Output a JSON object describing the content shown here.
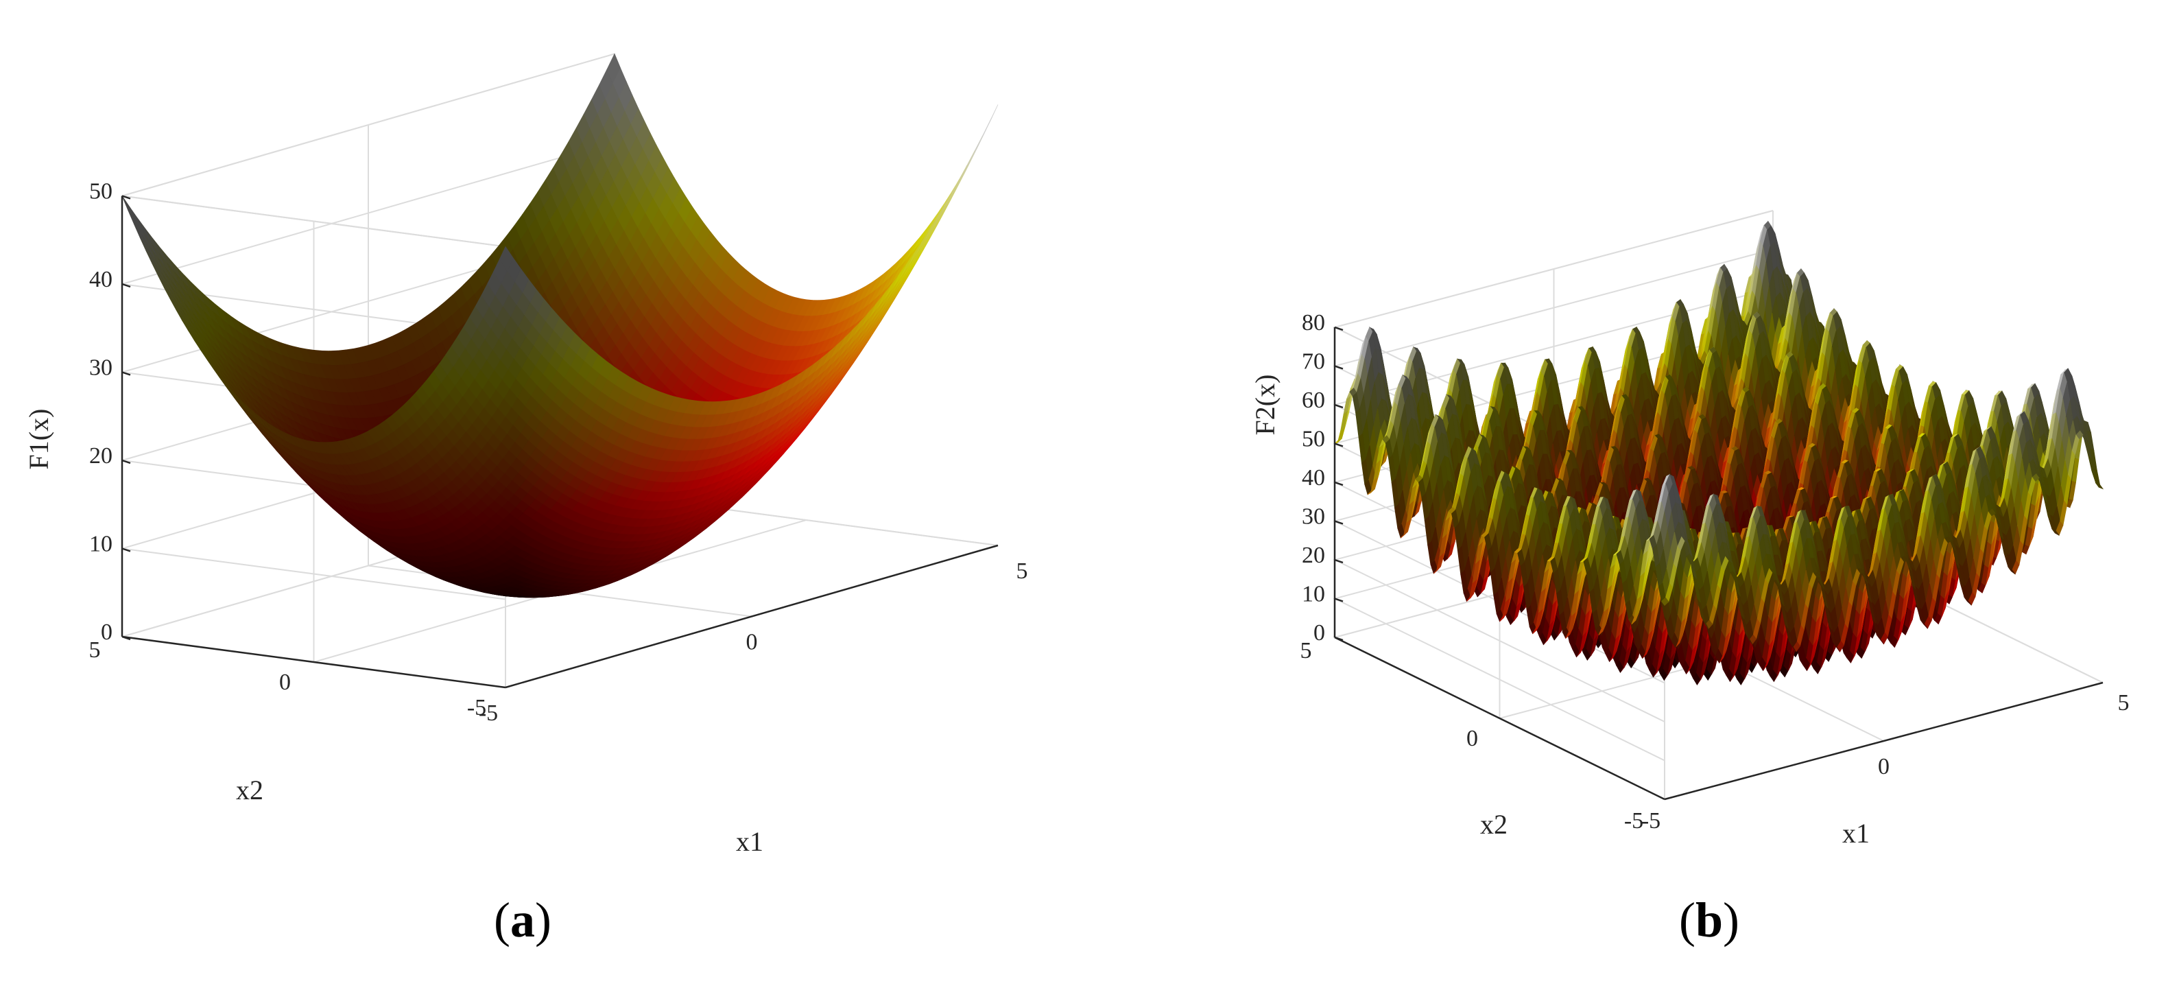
{
  "figure": {
    "captions": [
      {
        "open": "(",
        "letter": "a",
        "close": ")"
      },
      {
        "open": "(",
        "letter": "b",
        "close": ")"
      }
    ]
  },
  "chart_data": [
    {
      "type": "surface3d",
      "panel": "a",
      "function": "sphere",
      "zlabel": "F1(x)",
      "xlabel": "x1",
      "ylabel": "x2",
      "x_range": [
        -5,
        5
      ],
      "y_range": [
        -5,
        5
      ],
      "zlim": [
        0,
        50
      ],
      "x_ticks": [
        "-5",
        "0",
        "5"
      ],
      "y_ticks": [
        "-5",
        "0",
        "5"
      ],
      "z_ticks": [
        "0",
        "10",
        "20",
        "30",
        "40",
        "50"
      ],
      "x": [
        -5,
        -2.5,
        0,
        2.5,
        5
      ],
      "y": [
        -5,
        -2.5,
        0,
        2.5,
        5
      ],
      "z": [
        [
          50,
          31.25,
          25,
          31.25,
          50
        ],
        [
          31.25,
          12.5,
          6.25,
          12.5,
          31.25
        ],
        [
          25,
          6.25,
          0,
          6.25,
          25
        ],
        [
          31.25,
          12.5,
          6.25,
          12.5,
          31.25
        ],
        [
          50,
          31.25,
          25,
          31.25,
          50
        ]
      ],
      "colormap": "hot",
      "grid": true
    },
    {
      "type": "surface3d",
      "panel": "b",
      "function": "rastrigin",
      "zlabel": "F2(x)",
      "xlabel": "x1",
      "ylabel": "x2",
      "x_range": [
        -5,
        5
      ],
      "y_range": [
        -5,
        5
      ],
      "zlim": [
        0,
        80
      ],
      "x_ticks": [
        "-5",
        "0",
        "5"
      ],
      "y_ticks": [
        "-5",
        "0",
        "5"
      ],
      "z_ticks": [
        "0",
        "10",
        "20",
        "30",
        "40",
        "50",
        "60",
        "70",
        "80"
      ],
      "x": [
        -5,
        -2.5,
        0,
        2.5,
        5
      ],
      "y": [
        -5,
        -2.5,
        0,
        2.5,
        5
      ],
      "z": [
        [
          50,
          52.5,
          25,
          52.5,
          50
        ],
        [
          52.5,
          55,
          27.5,
          55,
          52.5
        ],
        [
          25,
          27.5,
          0,
          27.5,
          25
        ],
        [
          52.5,
          55,
          27.5,
          55,
          52.5
        ],
        [
          50,
          52.5,
          25,
          52.5,
          50
        ]
      ],
      "colormap": "hot",
      "grid": true
    }
  ]
}
